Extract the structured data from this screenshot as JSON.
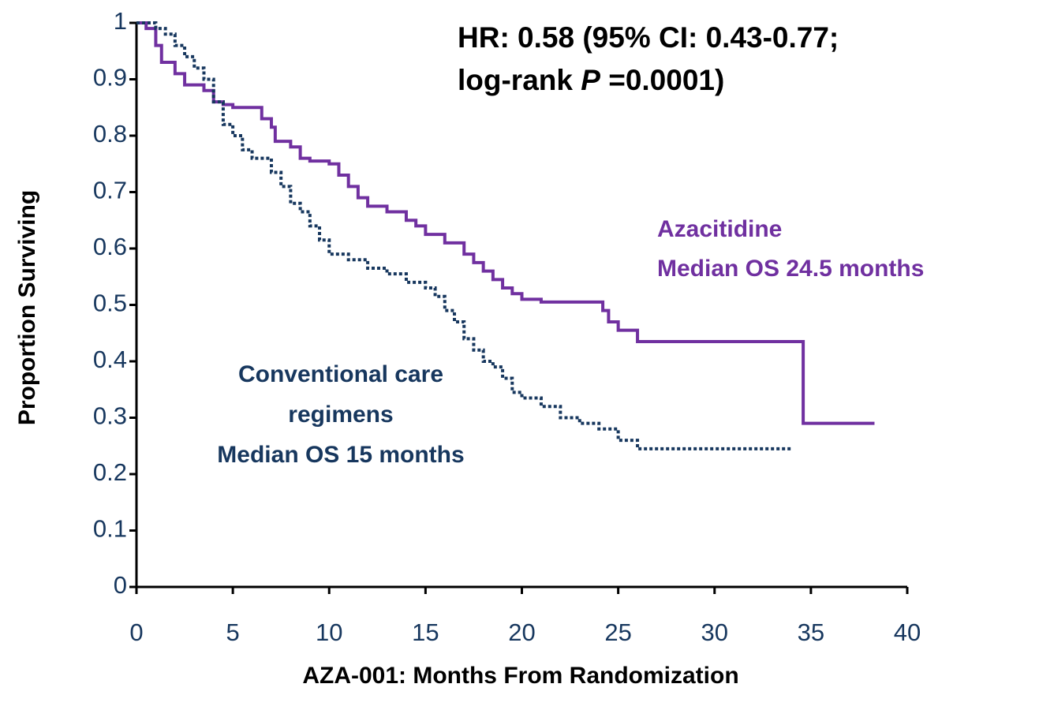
{
  "chart_data": {
    "type": "step",
    "annotation_line1": "HR: 0.58 (95% CI: 0.43-0.77;",
    "annotation_line2": {
      "prefix": "log-rank ",
      "p": "P",
      "suffix": " =0.0001)"
    },
    "xlabel": "AZA-001: Months From Randomization",
    "ylabel": "Proportion Surviving",
    "xlim": [
      0,
      40
    ],
    "xticks": [
      0,
      5,
      10,
      15,
      20,
      25,
      30,
      35,
      40
    ],
    "ylim": [
      0,
      1
    ],
    "yticks": [
      0,
      0.1,
      0.2,
      0.3,
      0.4,
      0.5,
      0.6,
      0.7,
      0.8,
      0.9,
      1
    ],
    "series": [
      {
        "name": "Azacitidine",
        "subtitle": "Median OS 24.5 months",
        "color": "#7030a0",
        "dash": false,
        "x": [
          0,
          0.5,
          1,
          1.3,
          2,
          2.5,
          3.5,
          4,
          4.5,
          5,
          6,
          6.5,
          7,
          7.2,
          8,
          8.5,
          9,
          10,
          10.5,
          11,
          11.5,
          12,
          13,
          14,
          14.5,
          15,
          16,
          17,
          17.5,
          18,
          18.5,
          19,
          19.5,
          20,
          21,
          24.2,
          24.5,
          25,
          26,
          34.6,
          38.3
        ],
        "values": [
          1.0,
          0.99,
          0.96,
          0.93,
          0.91,
          0.89,
          0.88,
          0.86,
          0.855,
          0.85,
          0.85,
          0.83,
          0.815,
          0.79,
          0.78,
          0.76,
          0.755,
          0.75,
          0.73,
          0.71,
          0.69,
          0.675,
          0.665,
          0.65,
          0.64,
          0.625,
          0.61,
          0.59,
          0.575,
          0.56,
          0.545,
          0.53,
          0.52,
          0.51,
          0.505,
          0.49,
          0.47,
          0.455,
          0.435,
          0.29,
          0.29
        ]
      },
      {
        "name": "Conventional care",
        "name_line2": "regimens",
        "subtitle": "Median OS 15 months",
        "color": "#17375e",
        "dash": true,
        "x": [
          0,
          1,
          1.5,
          2,
          2.5,
          3,
          3.5,
          4,
          4.5,
          5,
          5.5,
          6,
          7,
          7.5,
          8,
          8.5,
          9,
          9.5,
          10,
          11,
          12,
          13,
          14,
          15,
          15.5,
          16,
          16.5,
          17,
          17.5,
          18,
          18.5,
          19,
          19.5,
          20,
          21,
          22,
          23,
          24,
          25,
          26,
          34
        ],
        "values": [
          1.0,
          0.99,
          0.98,
          0.96,
          0.94,
          0.92,
          0.9,
          0.86,
          0.82,
          0.8,
          0.775,
          0.76,
          0.735,
          0.71,
          0.68,
          0.665,
          0.64,
          0.615,
          0.59,
          0.58,
          0.565,
          0.555,
          0.54,
          0.53,
          0.515,
          0.49,
          0.47,
          0.44,
          0.42,
          0.4,
          0.39,
          0.37,
          0.345,
          0.335,
          0.32,
          0.3,
          0.29,
          0.28,
          0.26,
          0.245,
          0.245
        ]
      }
    ]
  }
}
